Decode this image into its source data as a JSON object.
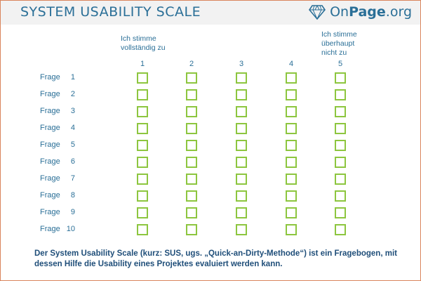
{
  "header": {
    "title": "SYSTEM USABILITY SCALE",
    "logo_prefix": "On",
    "logo_bold": "Page",
    "logo_suffix": ".org",
    "logo_icon": "diamond-icon"
  },
  "scale": {
    "left_label": "Ich stimme vollständig zu",
    "right_label_line1": "Ich stimme",
    "right_label_line2": "überhaupt",
    "right_label_line3": "nicht zu",
    "left_line1": "Ich stimme",
    "left_line2": "vollständig zu",
    "columns": [
      "1",
      "2",
      "3",
      "4",
      "5"
    ]
  },
  "questions": [
    {
      "label": "Frage",
      "num": "1"
    },
    {
      "label": "Frage",
      "num": "2"
    },
    {
      "label": "Frage",
      "num": "3"
    },
    {
      "label": "Frage",
      "num": "4"
    },
    {
      "label": "Frage",
      "num": "5"
    },
    {
      "label": "Frage",
      "num": "6"
    },
    {
      "label": "Frage",
      "num": "7"
    },
    {
      "label": "Frage",
      "num": "8"
    },
    {
      "label": "Frage",
      "num": "9"
    },
    {
      "label": "Frage",
      "num": "10"
    }
  ],
  "footer": {
    "text": "Der System Usability Scale (kurz: SUS, ugs. „Quick-an-Dirty-Methode“) ist ein Fragebogen, mit dessen Hilfe die Usability eines Projektes evaluiert werden kann."
  },
  "colors": {
    "accent": "#2a6f97",
    "checkbox": "#8dc63f",
    "border": "#d9855c"
  }
}
